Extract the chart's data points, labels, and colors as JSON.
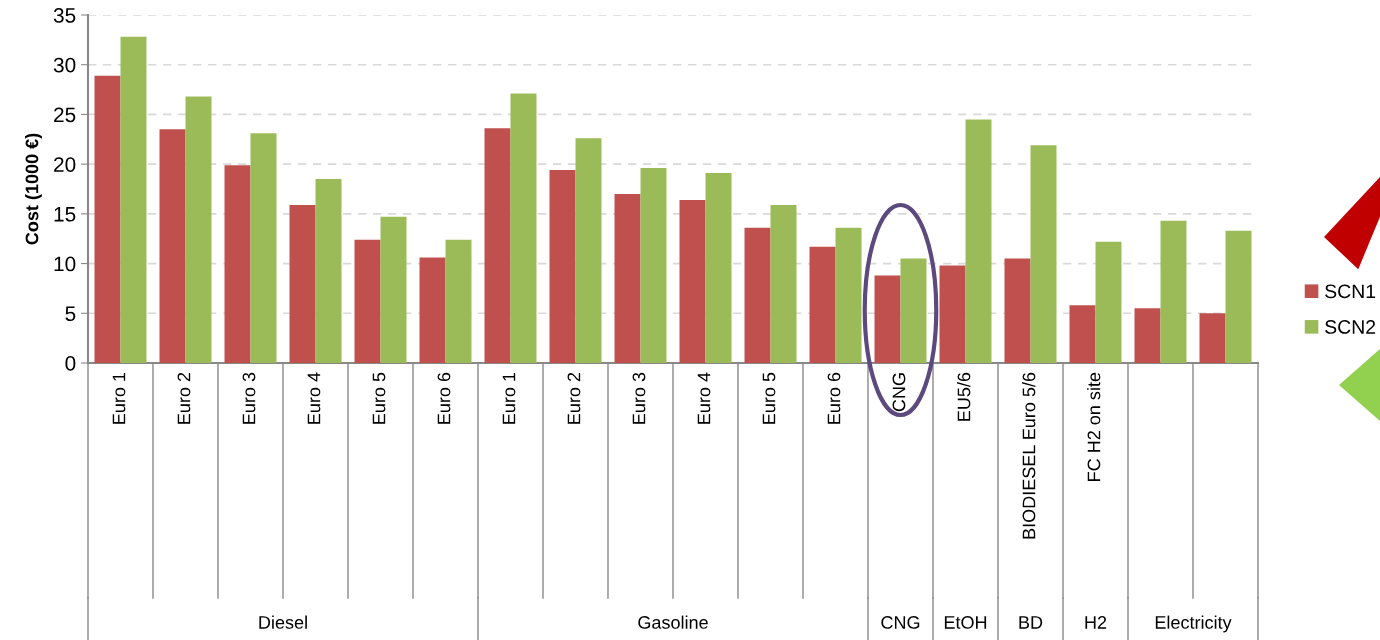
{
  "chart_data": {
    "type": "bar",
    "ylabel": "Cost (1000 €)",
    "categories": [
      "Euro 1",
      "Euro 2",
      "Euro 3",
      "Euro 4",
      "Euro 5",
      "Euro 6",
      "Euro 1",
      "Euro 2",
      "Euro 3",
      "Euro 4",
      "Euro 5",
      "Euro 6",
      "CNG",
      "EU5/6",
      "BIODIESEL Euro 5/6",
      "FC H2 on site",
      null,
      null
    ],
    "series": [
      {
        "name": "SCN1",
        "color": "#c0504d",
        "values": [
          28.9,
          23.5,
          19.9,
          15.9,
          12.4,
          10.6,
          23.6,
          19.4,
          17.0,
          16.4,
          13.6,
          11.7,
          8.8,
          9.8,
          10.5,
          5.8,
          5.5,
          5.0
        ]
      },
      {
        "name": "SCN2",
        "color": "#9bbb59",
        "values": [
          32.8,
          26.8,
          23.1,
          18.5,
          14.7,
          12.4,
          27.1,
          22.6,
          19.6,
          19.1,
          15.9,
          13.6,
          10.5,
          24.5,
          21.9,
          12.2,
          14.3,
          13.3
        ]
      }
    ],
    "annotations": [
      "Diesel",
      "Gasoline",
      "CNG",
      "EtOH",
      "BD",
      "H2",
      "Electricity"
    ],
    "ylim": [
      0,
      35
    ],
    "yticks": [
      0,
      5,
      10,
      15,
      20,
      25,
      30,
      35
    ],
    "grid": "y",
    "legend": "right"
  }
}
